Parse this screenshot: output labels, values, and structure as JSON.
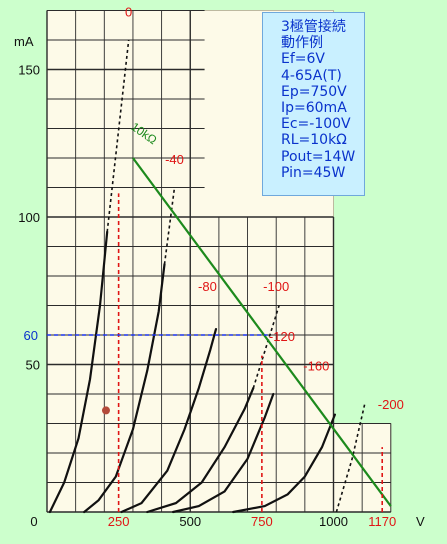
{
  "chart_data": {
    "type": "line",
    "xlabel": "V",
    "ylabel": "mA",
    "xlim": [
      0,
      1200
    ],
    "ylim": [
      0,
      170
    ],
    "grid": true,
    "x_ticks": [
      0,
      500,
      1000
    ],
    "y_ticks": [
      50,
      100,
      150
    ],
    "x_marks": [
      250,
      750,
      1170
    ],
    "y_marks": [
      60
    ],
    "series": [
      {
        "name": "0",
        "points": [
          [
            10,
            0
          ],
          [
            60,
            10
          ],
          [
            110,
            25
          ],
          [
            150,
            45
          ],
          [
            185,
            70
          ],
          [
            210,
            95
          ]
        ],
        "dashed_ext": [
          [
            210,
            95
          ],
          [
            285,
            160
          ]
        ]
      },
      {
        "name": "-40",
        "points": [
          [
            130,
            0
          ],
          [
            180,
            4
          ],
          [
            240,
            12
          ],
          [
            300,
            28
          ],
          [
            350,
            48
          ],
          [
            390,
            68
          ],
          [
            410,
            84
          ]
        ],
        "dashed_ext": [
          [
            410,
            84
          ],
          [
            445,
            110
          ]
        ]
      },
      {
        "name": "-80",
        "points": [
          [
            260,
            0
          ],
          [
            330,
            3
          ],
          [
            420,
            14
          ],
          [
            480,
            28
          ],
          [
            530,
            42
          ],
          [
            570,
            55
          ],
          [
            590,
            62
          ]
        ],
        "dashed_ext": []
      },
      {
        "name": "-100",
        "points": [
          [
            350,
            0
          ],
          [
            450,
            3
          ],
          [
            540,
            10
          ],
          [
            620,
            22
          ],
          [
            690,
            35
          ],
          [
            720,
            42
          ]
        ],
        "dashed_ext": [
          [
            720,
            42
          ],
          [
            810,
            70
          ]
        ]
      },
      {
        "name": "-120",
        "points": [
          [
            440,
            0
          ],
          [
            530,
            2
          ],
          [
            620,
            7
          ],
          [
            700,
            18
          ],
          [
            760,
            32
          ],
          [
            790,
            40
          ]
        ],
        "dashed_ext": []
      },
      {
        "name": "-160",
        "points": [
          [
            650,
            0
          ],
          [
            760,
            2
          ],
          [
            840,
            6
          ],
          [
            900,
            12
          ],
          [
            960,
            22
          ],
          [
            1005,
            33
          ]
        ],
        "dashed_ext": []
      },
      {
        "name": "-200",
        "points": [],
        "dashed_ext": [
          [
            1010,
            0
          ],
          [
            1065,
            18
          ],
          [
            1110,
            37
          ]
        ]
      }
    ],
    "load_line": {
      "name": "10kΩ",
      "points": [
        [
          300,
          120
        ],
        [
          1200,
          2
        ]
      ]
    },
    "operating_point": [
      520,
      48
    ],
    "extra_labels": [
      {
        "text": "0",
        "at": [
          285,
          168
        ]
      },
      {
        "text": "-40",
        "at": [
          445,
          118
        ]
      },
      {
        "text": "-80",
        "at": [
          560,
          75
        ]
      },
      {
        "text": "-100",
        "at": [
          800,
          75
        ]
      },
      {
        "text": "-120",
        "at": [
          820,
          58
        ]
      },
      {
        "text": "-160",
        "at": [
          940,
          48
        ]
      },
      {
        "text": "-200",
        "at": [
          1200,
          35
        ]
      }
    ],
    "colors": {
      "background": "#ccffcc",
      "paper": "#fdfae8",
      "grid": "#2b2b2b",
      "curve": "#111111",
      "load_line": "#1d8a1d",
      "marker": "#e01515",
      "blue_marker": "#1a33ee",
      "label_red": "#e01515",
      "label_blue": "#0a33cc"
    }
  },
  "info_box": {
    "lines": [
      "3極管接続",
      "動作例",
      "Ef=6V",
      "4-65A(T)",
      "Ep=750V",
      "Ip=60mA",
      "Ec=-100V",
      "RL=10kΩ",
      "Pout=14W",
      "Pin=45W"
    ]
  }
}
